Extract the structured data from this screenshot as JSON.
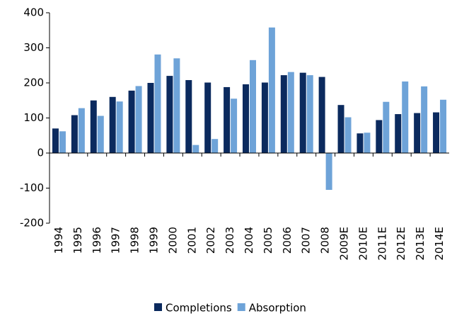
{
  "chart_data": {
    "type": "bar",
    "categories": [
      "1994",
      "1995",
      "1996",
      "1997",
      "1998",
      "1999",
      "2000",
      "2001",
      "2002",
      "2003",
      "2004",
      "2005",
      "2006",
      "2007",
      "2008",
      "2009E",
      "2010E",
      "2011E",
      "2012E",
      "2013E",
      "2014E"
    ],
    "series": [
      {
        "name": "Completions",
        "color": "#0b2a5e",
        "values": [
          70,
          108,
          150,
          160,
          178,
          200,
          220,
          208,
          201,
          188,
          196,
          201,
          222,
          229,
          217,
          137,
          56,
          94,
          111,
          114,
          116
        ]
      },
      {
        "name": "Absorption",
        "color": "#6ea3d8",
        "values": [
          62,
          128,
          106,
          147,
          191,
          281,
          270,
          23,
          40,
          155,
          265,
          358,
          231,
          222,
          -105,
          102,
          58,
          146,
          204,
          190,
          152
        ]
      }
    ],
    "ylim": [
      -200,
      400
    ],
    "yticks": [
      -200,
      -100,
      0,
      100,
      200,
      300,
      400
    ],
    "legend": "bottom"
  }
}
